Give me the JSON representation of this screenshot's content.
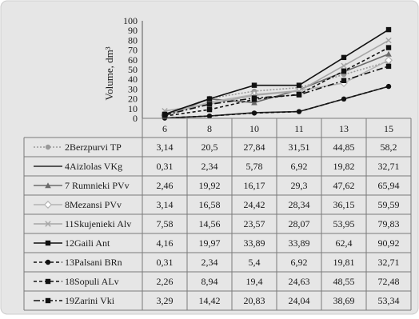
{
  "chart_data": {
    "type": "line",
    "ylabel": "Volume, dm³",
    "xlabel": "",
    "ylim": [
      0,
      100
    ],
    "yticks": [
      0,
      10,
      20,
      30,
      40,
      50,
      60,
      70,
      80,
      90,
      100
    ],
    "categories": [
      "6",
      "8",
      "10",
      "11",
      "13",
      "15"
    ],
    "grid": false,
    "legend": "table-left",
    "series": [
      {
        "name": "2Berzpurvi TP",
        "display": [
          "3,14",
          "20,5",
          "27,84",
          "31,51",
          "44,85",
          "58,2"
        ],
        "values": [
          3.14,
          20.5,
          27.84,
          31.51,
          44.85,
          58.2
        ],
        "color": "#9a9a9a",
        "dash": "2,2",
        "marker": "circle"
      },
      {
        "name": "4Aizlolas VKg",
        "display": [
          "0,31",
          "2,34",
          "5,78",
          "6,92",
          "19,82",
          "32,71"
        ],
        "values": [
          0.31,
          2.34,
          5.78,
          6.92,
          19.82,
          32.71
        ],
        "color": "#262626",
        "dash": "",
        "marker": "none"
      },
      {
        "name": "7 Rumnieki PVv",
        "display": [
          "2,46",
          "19,92",
          "16,17",
          "29,3",
          "47,62",
          "65,94"
        ],
        "values": [
          2.46,
          19.92,
          16.17,
          29.3,
          47.62,
          65.94
        ],
        "color": "#6b6b6b",
        "dash": "",
        "marker": "triangle"
      },
      {
        "name": "8Mezansi PVv",
        "display": [
          "3,14",
          "16,58",
          "24,42",
          "28,34",
          "36,15",
          "59,59"
        ],
        "values": [
          3.14,
          16.58,
          24.42,
          28.34,
          36.15,
          59.59
        ],
        "color": "#b4b4b4",
        "dash": "",
        "marker": "diamond"
      },
      {
        "name": "11Skujenieki Alv",
        "display": [
          "7,58",
          "14,56",
          "23,57",
          "28,07",
          "53,95",
          "79,83"
        ],
        "values": [
          7.58,
          14.56,
          23.57,
          28.07,
          53.95,
          79.83
        ],
        "color": "#a6a6a6",
        "dash": "",
        "marker": "x"
      },
      {
        "name": "12Gaili Ant",
        "display": [
          "4,16",
          "19,97",
          "33,89",
          "33,89",
          "62,4",
          "90,92"
        ],
        "values": [
          4.16,
          19.97,
          33.89,
          33.89,
          62.4,
          90.92
        ],
        "color": "#111111",
        "dash": "",
        "marker": "square"
      },
      {
        "name": "13Palsani BRn",
        "display": [
          "0,31",
          "2,34",
          "5,4",
          "6,92",
          "19,81",
          "32,71"
        ],
        "values": [
          0.31,
          2.34,
          5.4,
          6.92,
          19.81,
          32.71
        ],
        "color": "#111111",
        "dash": "4,3",
        "marker": "circle"
      },
      {
        "name": "18Sopuli ALv",
        "display": [
          "2,26",
          "8,94",
          "19,4",
          "24,63",
          "48,55",
          "72,48"
        ],
        "values": [
          2.26,
          8.94,
          19.4,
          24.63,
          48.55,
          72.48
        ],
        "color": "#111111",
        "dash": "4,3",
        "marker": "square"
      },
      {
        "name": "19Zarini Vki",
        "display": [
          "3,29",
          "14,42",
          "20,83",
          "24,04",
          "38,69",
          "53,34"
        ],
        "values": [
          3.29,
          14.42,
          20.83,
          24.04,
          38.69,
          53.34
        ],
        "color": "#111111",
        "dash": "8,3,2,3",
        "marker": "square"
      }
    ]
  }
}
